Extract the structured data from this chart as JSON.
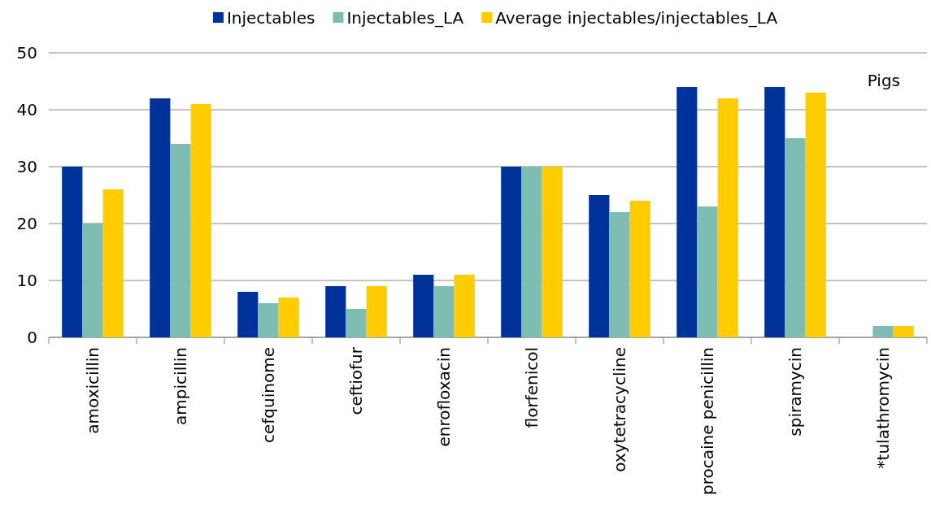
{
  "chart_data": {
    "type": "bar",
    "categories": [
      "amoxicillin",
      "ampicillin",
      "cefquinome",
      "ceftiofur",
      "enrofloxacin",
      "florfenicol",
      "oxytetracycline",
      "procaine penicillin",
      "spiramycin",
      "*tulathromycin"
    ],
    "series": [
      {
        "name": "Injectables",
        "color": "#003399",
        "values": [
          30,
          42,
          8,
          9,
          11,
          30,
          25,
          44,
          44,
          null
        ]
      },
      {
        "name": "Injectables_LA",
        "color": "#7fbcb1",
        "values": [
          20,
          34,
          6,
          5,
          9,
          30,
          22,
          23,
          35,
          2
        ]
      },
      {
        "name": "Average injectables/injectables_LA",
        "color": "#ffcc00",
        "values": [
          26,
          41,
          7,
          9,
          11,
          30,
          24,
          42,
          43,
          2
        ]
      }
    ],
    "ylim": [
      0,
      50
    ],
    "yticks": [
      0,
      10,
      20,
      30,
      40,
      50
    ],
    "grid": "y",
    "legend": "top",
    "annotations": [
      "Pigs"
    ]
  }
}
